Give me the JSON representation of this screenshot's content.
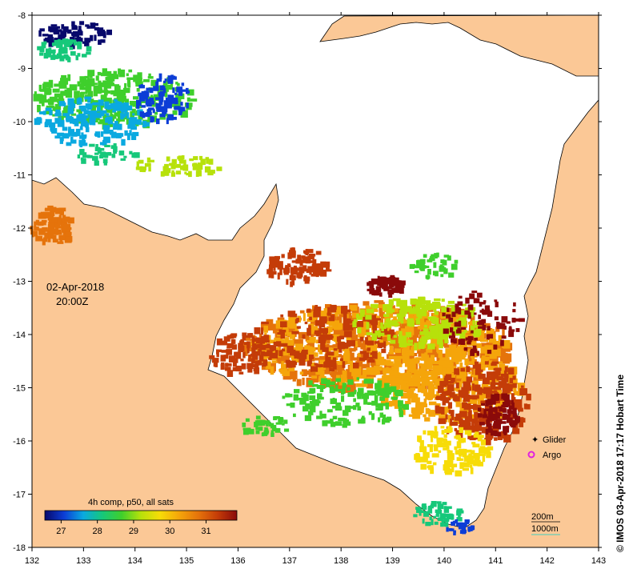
{
  "map": {
    "date": "02-Apr-2018",
    "time": "20:00Z",
    "credit": "© IMOS 03-Apr-2018 17:17 Hobart Time",
    "lon_ticks": [
      "132",
      "133",
      "134",
      "135",
      "136",
      "137",
      "138",
      "139",
      "140",
      "141",
      "142",
      "143"
    ],
    "lat_ticks": [
      "-8",
      "-9",
      "-10",
      "-11",
      "-12",
      "-13",
      "-14",
      "-15",
      "-16",
      "-17",
      "-18"
    ],
    "land_color": "#fbc896",
    "sea_color": "#ffffff"
  },
  "colorbar": {
    "title": "4h comp, p50, all sats",
    "ticks": [
      "27",
      "28",
      "29",
      "30",
      "31"
    ],
    "colors": [
      "#07086b",
      "#0c3dd6",
      "#0aa9e0",
      "#16c87a",
      "#3fcf2c",
      "#b7e10b",
      "#f7dc08",
      "#f5a50a",
      "#e5730b",
      "#c43c08",
      "#8a0a0a"
    ]
  },
  "legend": {
    "glider": "Glider",
    "argo": "Argo",
    "glider_color": "#e020e0",
    "argo_color": "#e020e0"
  },
  "bathymetry": {
    "line1": "200m",
    "line2": "1000m",
    "line1_color": "#000000",
    "line2_color": "#40d0c0"
  }
}
